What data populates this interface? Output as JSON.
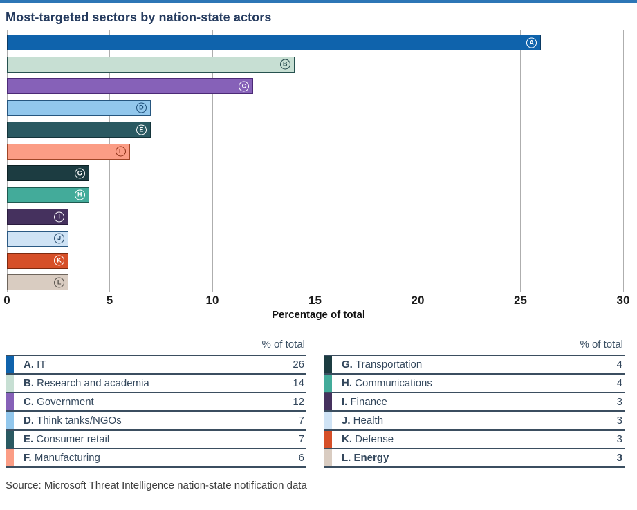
{
  "page": {
    "title": "Most-targeted sectors by nation-state actors",
    "source": "Source: Microsoft Threat Intelligence nation-state notification data",
    "accent_color": "#2d76b6"
  },
  "chart_data": {
    "type": "bar",
    "orientation": "horizontal",
    "title": "Most-targeted sectors by nation-state actors",
    "xlabel": "Percentage of total",
    "xlim": [
      0,
      30
    ],
    "x_ticks": [
      0,
      5,
      10,
      15,
      20,
      25,
      30
    ],
    "grid": "vertical",
    "gridline_color": "#aeaeae",
    "bars": [
      {
        "letter": "A",
        "label": "IT",
        "value": 26,
        "fill": "#0f63ac",
        "border": "#0b3a63",
        "circle": "#ffffff"
      },
      {
        "letter": "B",
        "label": "Research and academia",
        "value": 14,
        "fill": "#c7dfd3",
        "border": "#26514f",
        "circle": "#23484a"
      },
      {
        "letter": "C",
        "label": "Government",
        "value": 12,
        "fill": "#8661b8",
        "border": "#4c2a77",
        "circle": "#ffffff"
      },
      {
        "letter": "D",
        "label": "Think tanks/NGOs",
        "value": 7,
        "fill": "#92c7ec",
        "border": "#26567f",
        "circle": "#1d4e79"
      },
      {
        "letter": "E",
        "label": "Consumer retail",
        "value": 7,
        "fill": "#2a5961",
        "border": "#14343a",
        "circle": "#ffffff"
      },
      {
        "letter": "F",
        "label": "Manufacturing",
        "value": 6,
        "fill": "#fb9d85",
        "border": "#a04526",
        "circle": "#8c3015"
      },
      {
        "letter": "G",
        "label": "Transportation",
        "value": 4,
        "fill": "#1c3c41",
        "border": "#0d2225",
        "circle": "#ffffff"
      },
      {
        "letter": "H",
        "label": "Communications",
        "value": 4,
        "fill": "#43ab9a",
        "border": "#1e5a50",
        "circle": "#ffffff"
      },
      {
        "letter": "I",
        "label": "Finance",
        "value": 3,
        "fill": "#45315e",
        "border": "#2a1c3e",
        "circle": "#ffffff"
      },
      {
        "letter": "J",
        "label": "Health",
        "value": 3,
        "fill": "#cfe3f5",
        "border": "#2b5a84",
        "circle": "#274b6d"
      },
      {
        "letter": "K",
        "label": "Defense",
        "value": 3,
        "fill": "#d64f28",
        "border": "#7e2a10",
        "circle": "#ffffff"
      },
      {
        "letter": "L",
        "label": "Energy",
        "value": 3,
        "fill": "#d9ccc1",
        "border": "#6e655c",
        "circle": "#55504a"
      }
    ]
  },
  "legend": {
    "value_header": "% of total",
    "left_column_letters": [
      "A",
      "B",
      "C",
      "D",
      "E",
      "F"
    ],
    "right_column_letters": [
      "G",
      "H",
      "I",
      "J",
      "K",
      "L"
    ],
    "bold_rows": [
      "L"
    ]
  }
}
